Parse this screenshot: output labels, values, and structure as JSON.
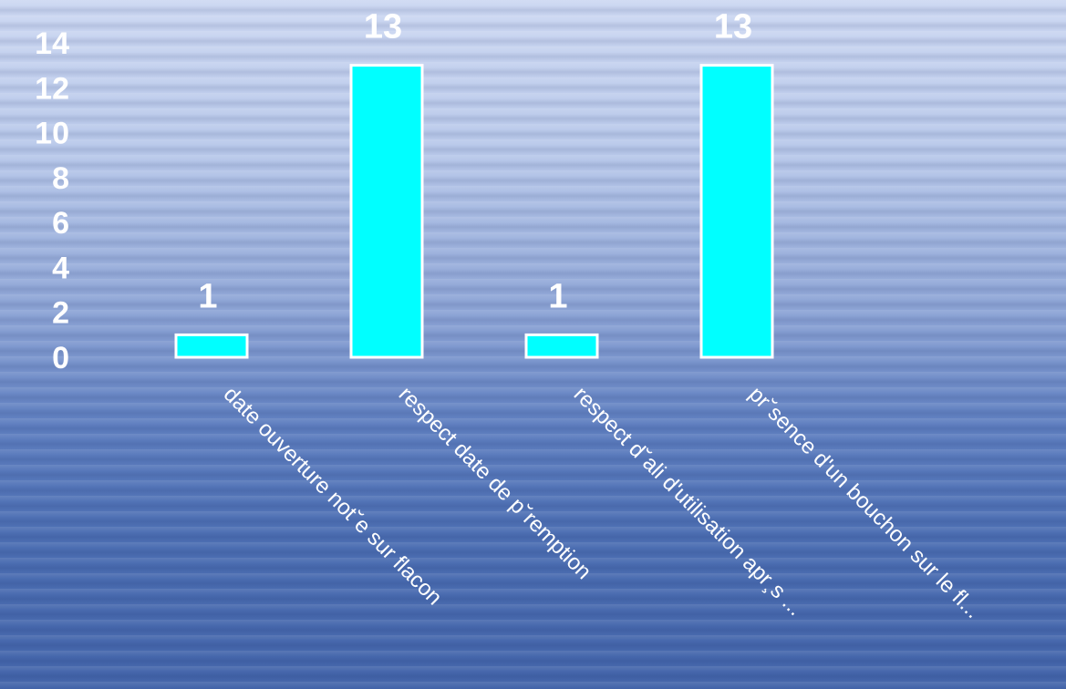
{
  "chart_data": {
    "type": "bar",
    "categories": [
      "date ouverture not˘e sur flacon",
      "respect date de p˘remption",
      "respect d˘ali d'utilisation apr¸s ...",
      "pr˘sence d'un bouchon sur le fl..."
    ],
    "values": [
      1,
      13,
      1,
      13
    ],
    "ylim": [
      0,
      14
    ],
    "yticks": [
      "0",
      "2",
      "4",
      "6",
      "8",
      "10",
      "12",
      "14"
    ],
    "data_labels": [
      "1",
      "13",
      "1",
      "13"
    ],
    "grid": false,
    "bar_color": "#00ffff",
    "bar_border_color": "#ffffff",
    "text_color": "#ffffff"
  }
}
